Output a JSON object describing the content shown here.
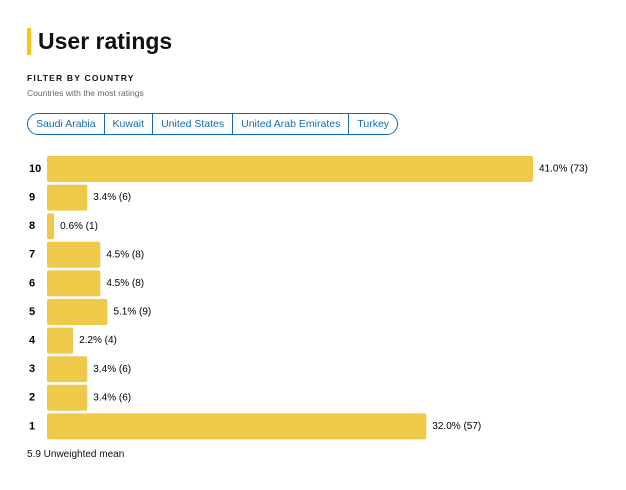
{
  "header": {
    "title": "User ratings",
    "filter_label": "FILTER BY COUNTRY",
    "subtitle": "Countries with the most ratings"
  },
  "filters": [
    "Saudi Arabia",
    "Kuwait",
    "United States",
    "United Arab Emirates",
    "Turkey"
  ],
  "chart_data": {
    "type": "bar",
    "orientation": "horizontal",
    "categories": [
      "10",
      "9",
      "8",
      "7",
      "6",
      "5",
      "4",
      "3",
      "2",
      "1"
    ],
    "values": [
      41.0,
      3.4,
      0.6,
      4.5,
      4.5,
      5.1,
      2.2,
      3.4,
      3.4,
      32.0
    ],
    "value_labels": [
      "41.0% (73)",
      "3.4% (6)",
      "0.6% (1)",
      "4.5% (8)",
      "4.5% (8)",
      "5.1% (9)",
      "2.2% (4)",
      "3.4% (6)",
      "3.4% (6)",
      "32.0% (57)"
    ],
    "color": "#eec94a"
  },
  "footer": "5.9 Unweighted mean"
}
